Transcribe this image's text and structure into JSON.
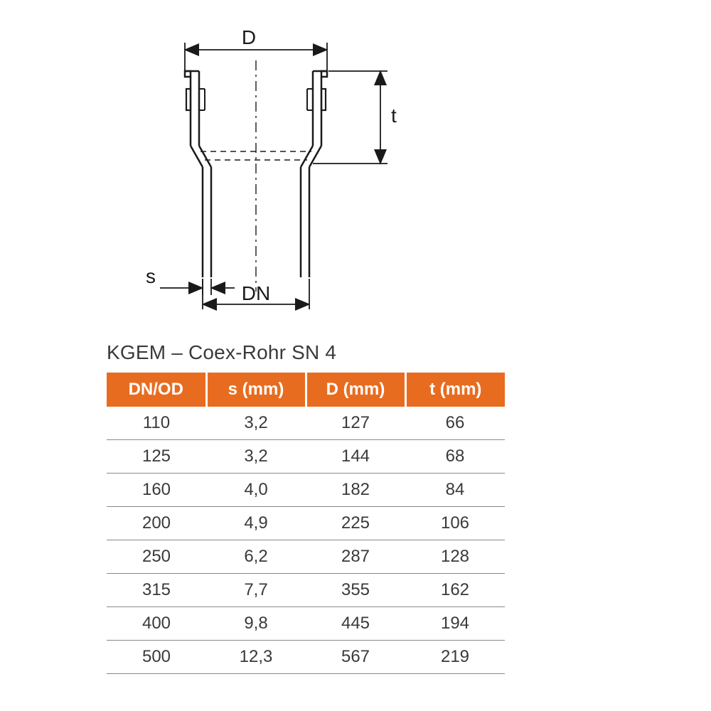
{
  "diagram": {
    "labels": {
      "D": "D",
      "t": "t",
      "s": "s",
      "DN": "DN"
    },
    "stroke_color": "#1a1a1a",
    "stroke_width_main": 2.5,
    "stroke_width_dim": 1.8,
    "font_size": 28
  },
  "table": {
    "title": "KGEM – Coex-Rohr SN 4",
    "header_bg": "#e86c1f",
    "header_fg": "#ffffff",
    "row_border": "#888888",
    "cell_color": "#3a3a3a",
    "title_color": "#3a3a3a",
    "title_fontsize": 28,
    "header_fontsize": 24,
    "cell_fontsize": 24,
    "columns": [
      "DN/OD",
      "s (mm)",
      "D (mm)",
      "t (mm)"
    ],
    "rows": [
      [
        "110",
        "3,2",
        "127",
        "66"
      ],
      [
        "125",
        "3,2",
        "144",
        "68"
      ],
      [
        "160",
        "4,0",
        "182",
        "84"
      ],
      [
        "200",
        "4,9",
        "225",
        "106"
      ],
      [
        "250",
        "6,2",
        "287",
        "128"
      ],
      [
        "315",
        "7,7",
        "355",
        "162"
      ],
      [
        "400",
        "9,8",
        "445",
        "194"
      ],
      [
        "500",
        "12,3",
        "567",
        "219"
      ]
    ]
  }
}
